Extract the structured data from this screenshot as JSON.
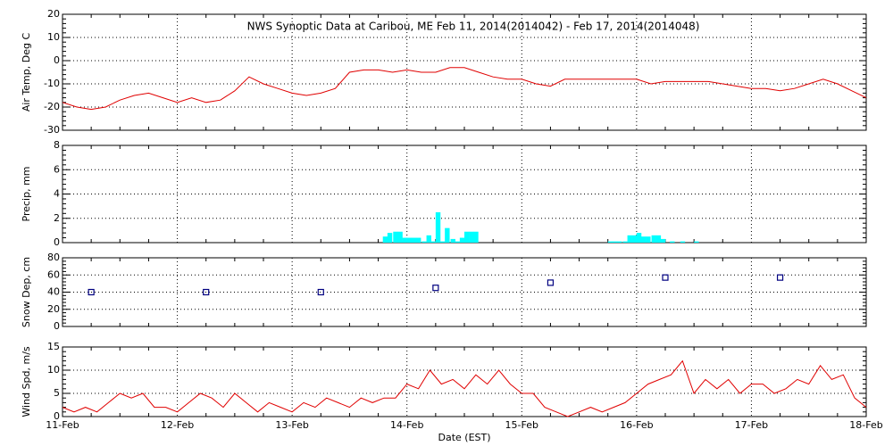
{
  "chart_data": [
    {
      "type": "line",
      "title": "NWS Synoptic Data at Caribou, ME   Feb 11, 2014(2014042) - Feb 17, 2014(2014048)",
      "ylabel": "Air Temp, Deg C",
      "color": "#e00000",
      "grid": true,
      "xlim": [
        11,
        18
      ],
      "xticks": [
        11,
        12,
        13,
        14,
        15,
        16,
        17,
        18
      ],
      "ylim": [
        -30,
        20
      ],
      "yticks": [
        -30,
        -20,
        -10,
        0,
        10,
        20
      ],
      "x": [
        11,
        11.125,
        11.25,
        11.375,
        11.5,
        11.625,
        11.75,
        11.875,
        12,
        12.125,
        12.25,
        12.375,
        12.5,
        12.625,
        12.75,
        12.875,
        13,
        13.125,
        13.25,
        13.375,
        13.5,
        13.625,
        13.75,
        13.875,
        14,
        14.125,
        14.25,
        14.375,
        14.5,
        14.625,
        14.75,
        14.875,
        15,
        15.125,
        15.25,
        15.375,
        15.5,
        15.625,
        15.75,
        15.875,
        16,
        16.125,
        16.25,
        16.375,
        16.5,
        16.625,
        16.75,
        16.875,
        17,
        17.125,
        17.25,
        17.375,
        17.5,
        17.625,
        17.75,
        17.875,
        18
      ],
      "values": [
        -18,
        -20,
        -21,
        -20,
        -17,
        -15,
        -14,
        -16,
        -18,
        -16,
        -18,
        -17,
        -13,
        -7,
        -10,
        -12,
        -14,
        -15,
        -14,
        -12,
        -5,
        -4,
        -4,
        -5,
        -4,
        -5,
        -5,
        -3,
        -3,
        -5,
        -7,
        -8,
        -8,
        -10,
        -11,
        -8,
        -8,
        -8,
        -8,
        -8,
        -8,
        -10,
        -9,
        -9,
        -9,
        -9,
        -10,
        -11,
        -12,
        -12,
        -13,
        -12,
        -10,
        -8,
        -10,
        -13,
        -16
      ]
    },
    {
      "type": "bar",
      "ylabel": "Precip, mm",
      "color": "#00ffff",
      "grid": true,
      "xlim": [
        11,
        18
      ],
      "xticks": [
        11,
        12,
        13,
        14,
        15,
        16,
        17,
        18
      ],
      "ylim": [
        0,
        8
      ],
      "yticks": [
        0,
        2,
        4,
        6,
        8
      ],
      "x": [
        13.79,
        13.83,
        13.88,
        13.92,
        13.96,
        14.0,
        14.04,
        14.08,
        14.13,
        14.17,
        14.21,
        14.25,
        14.29,
        14.33,
        14.38,
        14.42,
        14.46,
        14.5,
        14.54,
        14.58,
        15.75,
        15.79,
        15.83,
        15.88,
        15.92,
        15.96,
        16.0,
        16.04,
        16.08,
        16.13,
        16.17,
        16.21,
        16.29,
        16.38,
        16.5
      ],
      "values": [
        0.5,
        0.8,
        0.9,
        0.9,
        0.4,
        0.4,
        0.4,
        0.4,
        0.1,
        0.6,
        0.1,
        2.5,
        0.1,
        1.2,
        0.3,
        0.1,
        0.4,
        0.9,
        0.9,
        0.9,
        0.1,
        0.1,
        0.1,
        0.1,
        0.6,
        0.6,
        0.8,
        0.5,
        0.5,
        0.6,
        0.6,
        0.3,
        0.1,
        0.1,
        0.1
      ]
    },
    {
      "type": "scatter",
      "ylabel": "Snow Dep, cm",
      "color": "#000080",
      "grid": true,
      "xlim": [
        11,
        18
      ],
      "xticks": [
        11,
        12,
        13,
        14,
        15,
        16,
        17,
        18
      ],
      "ylim": [
        0,
        80
      ],
      "yticks": [
        0,
        20,
        40,
        60,
        80
      ],
      "x": [
        11.25,
        12.25,
        13.25,
        14.25,
        15.25,
        16.25,
        17.25
      ],
      "values": [
        40,
        40,
        40,
        45,
        51,
        57,
        57
      ]
    },
    {
      "type": "line",
      "ylabel": "Wind Spd, m/s",
      "xlabel": "Date (EST)",
      "color": "#e00000",
      "grid": true,
      "xlim": [
        11,
        18
      ],
      "xticks": [
        {
          "value": 11,
          "label": "11-Feb"
        },
        {
          "value": 12,
          "label": "12-Feb"
        },
        {
          "value": 13,
          "label": "13-Feb"
        },
        {
          "value": 14,
          "label": "14-Feb"
        },
        {
          "value": 15,
          "label": "15-Feb"
        },
        {
          "value": 16,
          "label": "16-Feb"
        },
        {
          "value": 17,
          "label": "17-Feb"
        },
        {
          "value": 18,
          "label": "18-Feb"
        }
      ],
      "ylim": [
        0,
        15
      ],
      "yticks": [
        0,
        5,
        10,
        15
      ],
      "x": [
        11,
        11.1,
        11.2,
        11.3,
        11.4,
        11.5,
        11.6,
        11.7,
        11.8,
        11.9,
        12,
        12.1,
        12.2,
        12.3,
        12.4,
        12.5,
        12.6,
        12.7,
        12.8,
        12.9,
        13,
        13.1,
        13.2,
        13.3,
        13.4,
        13.5,
        13.6,
        13.7,
        13.8,
        13.9,
        14,
        14.1,
        14.2,
        14.3,
        14.4,
        14.5,
        14.6,
        14.7,
        14.8,
        14.9,
        15,
        15.1,
        15.2,
        15.3,
        15.4,
        15.5,
        15.6,
        15.7,
        15.8,
        15.9,
        16,
        16.1,
        16.2,
        16.3,
        16.4,
        16.5,
        16.6,
        16.7,
        16.8,
        16.9,
        17,
        17.1,
        17.2,
        17.3,
        17.4,
        17.5,
        17.6,
        17.7,
        17.8,
        17.9,
        18
      ],
      "values": [
        2,
        1,
        2,
        1,
        3,
        5,
        4,
        5,
        2,
        2,
        1,
        3,
        5,
        4,
        2,
        5,
        3,
        1,
        3,
        2,
        1,
        3,
        2,
        4,
        3,
        2,
        4,
        3,
        4,
        4,
        7,
        6,
        10,
        7,
        8,
        6,
        9,
        7,
        10,
        7,
        5,
        5,
        2,
        1,
        0,
        1,
        2,
        1,
        2,
        3,
        5,
        7,
        8,
        9,
        12,
        5,
        8,
        6,
        8,
        5,
        7,
        7,
        5,
        6,
        8,
        7,
        11,
        8,
        9,
        4,
        2
      ]
    }
  ]
}
